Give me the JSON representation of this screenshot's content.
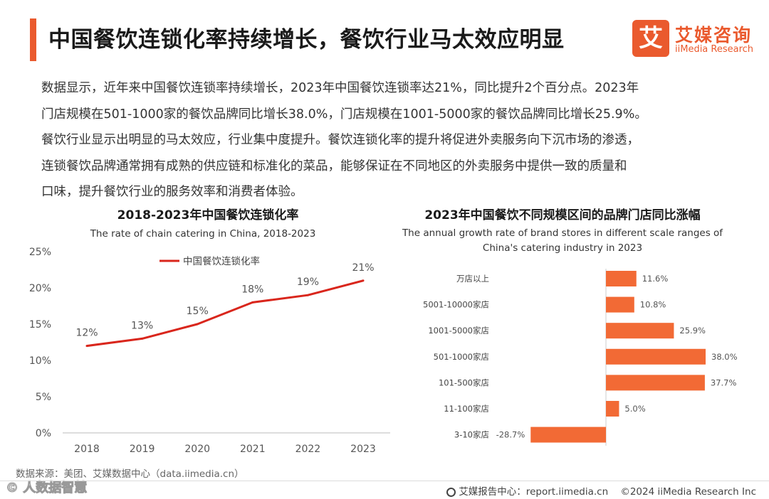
{
  "header": {
    "title": "中国餐饮连锁化率持续增长，餐饮行业马太效应明显",
    "logo_char": "艾",
    "logo_cn": "艾媒咨询",
    "logo_en": "iiMedia Research"
  },
  "body": {
    "lines": [
      "数据显示，近年来中国餐饮连锁率持续增长，2023年中国餐饮连锁率达21%，同比提升2个百分点。2023年",
      "门店规模在501-1000家的餐饮品牌同比增长38.0%，门店规模在1001-5000家的餐饮品牌同比增长25.9%。",
      "餐饮行业显示出明显的马太效应，行业集中度提升。餐饮连锁化率的提升将促进外卖服务向下沉市场的渗透，",
      "连锁餐饮品牌通常拥有成熟的供应链和标准化的菜品，能够保证在不同地区的外卖服务中提供一致的质量和",
      "口味，提升餐饮行业的服务效率和消费者体验。"
    ]
  },
  "colors": {
    "accent": "#ea5a2e",
    "line": "#d9261c",
    "bar": "#f26a35"
  },
  "chart_data": [
    {
      "type": "line",
      "title": "2018-2023年中国餐饮连锁化率",
      "subtitle": "The rate of chain catering in China, 2018-2023",
      "categories": [
        "2018",
        "2019",
        "2020",
        "2021",
        "2022",
        "2023"
      ],
      "series": [
        {
          "name": "中国餐饮连锁化率",
          "values": [
            12,
            13,
            15,
            18,
            19,
            21
          ],
          "labels": [
            "12%",
            "13%",
            "15%",
            "18%",
            "19%",
            "21%"
          ]
        }
      ],
      "ylim": [
        0,
        25
      ],
      "yticks": [
        "0%",
        "5%",
        "10%",
        "15%",
        "20%",
        "25%"
      ],
      "legend": "top"
    },
    {
      "type": "bar",
      "orientation": "horizontal",
      "title": "2023年中国餐饮不同规模区间的品牌门店同比涨幅",
      "subtitle_lines": [
        "The annual growth rate of brand stores in different scale ranges of",
        "China's catering industry in 2023"
      ],
      "categories": [
        "万店以上",
        "5001-10000家店",
        "1001-5000家店",
        "501-1000家店",
        "101-500家店",
        "11-100家店",
        "3-10家店"
      ],
      "values": [
        11.6,
        10.8,
        25.9,
        38.0,
        37.7,
        5.0,
        -28.7
      ],
      "labels": [
        "11.6%",
        "10.8%",
        "25.9%",
        "38.0%",
        "37.7%",
        "5.0%",
        "-28.7%"
      ]
    }
  ],
  "footer": {
    "source": "数据来源：美团、艾媒数据中心（data.iimedia.cn）",
    "report": "艾媒报告中心：report.iimedia.cn",
    "copyright": "©2024  iiMedia Research  Inc",
    "watermark": "©  人数据智慧"
  }
}
